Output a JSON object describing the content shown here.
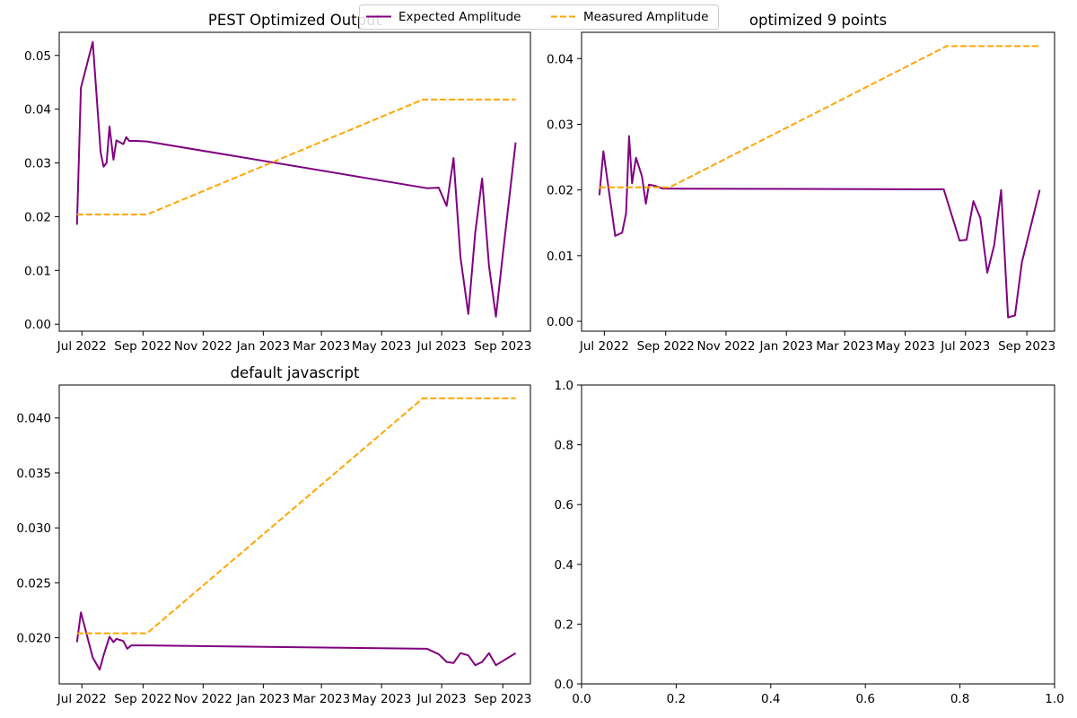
{
  "legend": {
    "entries": [
      {
        "label": "Expected Amplitude",
        "color": "#800080",
        "style": "solid"
      },
      {
        "label": "Measured Amplitude",
        "color": "#FFA500",
        "style": "dashed"
      }
    ],
    "placement": "top-center"
  },
  "chart_data": [
    {
      "type": "line",
      "title": "PEST Optimized Output",
      "xlabel": "",
      "ylabel": "",
      "x_axis": "date",
      "xlim": [
        "2022-06-08",
        "2023-09-29"
      ],
      "ylim": [
        -0.0013,
        0.0543
      ],
      "x_ticks": [
        "2022-07-01",
        "2022-09-01",
        "2022-11-01",
        "2023-01-01",
        "2023-03-01",
        "2023-05-01",
        "2023-07-01",
        "2023-09-01"
      ],
      "x_tick_labels": [
        "Jul 2022",
        "Sep 2022",
        "Nov 2022",
        "Jan 2023",
        "Mar 2023",
        "May 2023",
        "Jul 2023",
        "Sep 2023"
      ],
      "y_ticks": [
        0.0,
        0.01,
        0.02,
        0.03,
        0.04,
        0.05
      ],
      "y_tick_labels": [
        "0.00",
        "0.01",
        "0.02",
        "0.03",
        "0.04",
        "0.05"
      ],
      "grid": false,
      "series": [
        {
          "name": "Expected Amplitude",
          "color": "#800080",
          "style": "solid",
          "x": [
            "2022-06-26",
            "2022-06-30",
            "2022-07-12",
            "2022-07-20",
            "2022-07-23",
            "2022-07-26",
            "2022-07-29",
            "2022-08-02",
            "2022-08-05",
            "2022-08-12",
            "2022-08-15",
            "2022-08-18",
            "2022-08-25",
            "2022-09-05",
            "2023-06-16",
            "2023-06-28",
            "2023-07-06",
            "2023-07-13",
            "2023-07-20",
            "2023-07-28",
            "2023-08-04",
            "2023-08-11",
            "2023-08-18",
            "2023-08-25",
            "2023-09-01",
            "2023-09-14"
          ],
          "y": [
            0.0185,
            0.044,
            0.0525,
            0.032,
            0.0293,
            0.03,
            0.0368,
            0.0306,
            0.0342,
            0.0335,
            0.0348,
            0.0341,
            0.0341,
            0.034,
            0.0253,
            0.0254,
            0.022,
            0.0309,
            0.0125,
            0.0019,
            0.017,
            0.0271,
            0.0108,
            0.0014,
            0.013,
            0.0338
          ]
        },
        {
          "name": "Measured Amplitude",
          "color": "#FFA500",
          "style": "dashed",
          "x": [
            "2022-06-26",
            "2022-09-05",
            "2023-06-12",
            "2023-09-14"
          ],
          "y": [
            0.0204,
            0.0204,
            0.0418,
            0.0418
          ]
        }
      ]
    },
    {
      "type": "line",
      "title": "optimized 9 points",
      "xlabel": "",
      "ylabel": "",
      "x_axis": "date",
      "xlim": [
        "2022-06-08",
        "2023-09-29"
      ],
      "ylim": [
        -0.0015,
        0.044
      ],
      "x_ticks": [
        "2022-07-01",
        "2022-09-01",
        "2022-11-01",
        "2023-01-01",
        "2023-03-01",
        "2023-05-01",
        "2023-07-01",
        "2023-09-01"
      ],
      "x_tick_labels": [
        "Jul 2022",
        "Sep 2022",
        "Nov 2022",
        "Jan 2023",
        "Mar 2023",
        "May 2023",
        "Jul 2023",
        "Sep 2023"
      ],
      "y_ticks": [
        0.0,
        0.01,
        0.02,
        0.03,
        0.04
      ],
      "y_tick_labels": [
        "0.00",
        "0.01",
        "0.02",
        "0.03",
        "0.04"
      ],
      "grid": false,
      "series": [
        {
          "name": "Expected Amplitude",
          "color": "#800080",
          "style": "solid",
          "x": [
            "2022-06-26",
            "2022-06-30",
            "2022-07-12",
            "2022-07-19",
            "2022-07-23",
            "2022-07-26",
            "2022-07-29",
            "2022-08-02",
            "2022-08-08",
            "2022-08-12",
            "2022-08-15",
            "2022-08-22",
            "2022-08-29",
            "2022-09-05",
            "2023-06-09",
            "2023-06-25",
            "2023-07-02",
            "2023-07-09",
            "2023-07-16",
            "2023-07-23",
            "2023-07-30",
            "2023-08-06",
            "2023-08-13",
            "2023-08-20",
            "2023-08-27",
            "2023-09-14"
          ],
          "y": [
            0.0192,
            0.0259,
            0.013,
            0.0135,
            0.0165,
            0.0282,
            0.021,
            0.0249,
            0.0221,
            0.0179,
            0.0208,
            0.0206,
            0.0202,
            0.0202,
            0.0201,
            0.0123,
            0.0124,
            0.0183,
            0.0157,
            0.0074,
            0.0116,
            0.02,
            0.0006,
            0.0009,
            0.009,
            0.02
          ]
        },
        {
          "name": "Measured Amplitude",
          "color": "#FFA500",
          "style": "dashed",
          "x": [
            "2022-06-26",
            "2022-09-05",
            "2023-06-12",
            "2023-09-14"
          ],
          "y": [
            0.0204,
            0.0204,
            0.0419,
            0.0419
          ]
        }
      ]
    },
    {
      "type": "line",
      "title": "default javascript",
      "xlabel": "",
      "ylabel": "",
      "x_axis": "date",
      "xlim": [
        "2022-06-08",
        "2023-09-29"
      ],
      "ylim": [
        0.0158,
        0.043
      ],
      "x_ticks": [
        "2022-07-01",
        "2022-09-01",
        "2022-11-01",
        "2023-01-01",
        "2023-03-01",
        "2023-05-01",
        "2023-07-01",
        "2023-09-01"
      ],
      "x_tick_labels": [
        "Jul 2022",
        "Sep 2022",
        "Nov 2022",
        "Jan 2023",
        "Mar 2023",
        "May 2023",
        "Jul 2023",
        "Sep 2023"
      ],
      "y_ticks": [
        0.02,
        0.025,
        0.03,
        0.035,
        0.04
      ],
      "y_tick_labels": [
        "0.020",
        "0.025",
        "0.030",
        "0.035",
        "0.040"
      ],
      "grid": false,
      "series": [
        {
          "name": "Expected Amplitude",
          "color": "#800080",
          "style": "solid",
          "x": [
            "2022-06-26",
            "2022-06-30",
            "2022-07-12",
            "2022-07-19",
            "2022-07-23",
            "2022-07-29",
            "2022-08-02",
            "2022-08-05",
            "2022-08-12",
            "2022-08-16",
            "2022-08-20",
            "2022-09-05",
            "2023-06-16",
            "2023-06-28",
            "2023-07-06",
            "2023-07-13",
            "2023-07-20",
            "2023-07-28",
            "2023-08-04",
            "2023-08-11",
            "2023-08-18",
            "2023-08-25",
            "2023-09-14"
          ],
          "y": [
            0.0196,
            0.0223,
            0.0182,
            0.0171,
            0.0184,
            0.0201,
            0.0196,
            0.0199,
            0.0197,
            0.019,
            0.0193,
            0.0193,
            0.019,
            0.0185,
            0.0178,
            0.0177,
            0.0186,
            0.0184,
            0.0175,
            0.0178,
            0.0186,
            0.0175,
            0.0186
          ]
        },
        {
          "name": "Measured Amplitude",
          "color": "#FFA500",
          "style": "dashed",
          "x": [
            "2022-06-26",
            "2022-09-05",
            "2023-06-12",
            "2023-09-14"
          ],
          "y": [
            0.0204,
            0.0204,
            0.0418,
            0.0418
          ]
        }
      ]
    },
    {
      "type": "line",
      "title": "",
      "xlabel": "",
      "ylabel": "",
      "x_axis": "numeric",
      "xlim": [
        0,
        1
      ],
      "ylim": [
        0,
        1
      ],
      "x_ticks": [
        0.0,
        0.2,
        0.4,
        0.6,
        0.8,
        1.0
      ],
      "x_tick_labels": [
        "0.0",
        "0.2",
        "0.4",
        "0.6",
        "0.8",
        "1.0"
      ],
      "y_ticks": [
        0.0,
        0.2,
        0.4,
        0.6,
        0.8,
        1.0
      ],
      "y_tick_labels": [
        "0.0",
        "0.2",
        "0.4",
        "0.6",
        "0.8",
        "1.0"
      ],
      "grid": false,
      "series": []
    }
  ]
}
